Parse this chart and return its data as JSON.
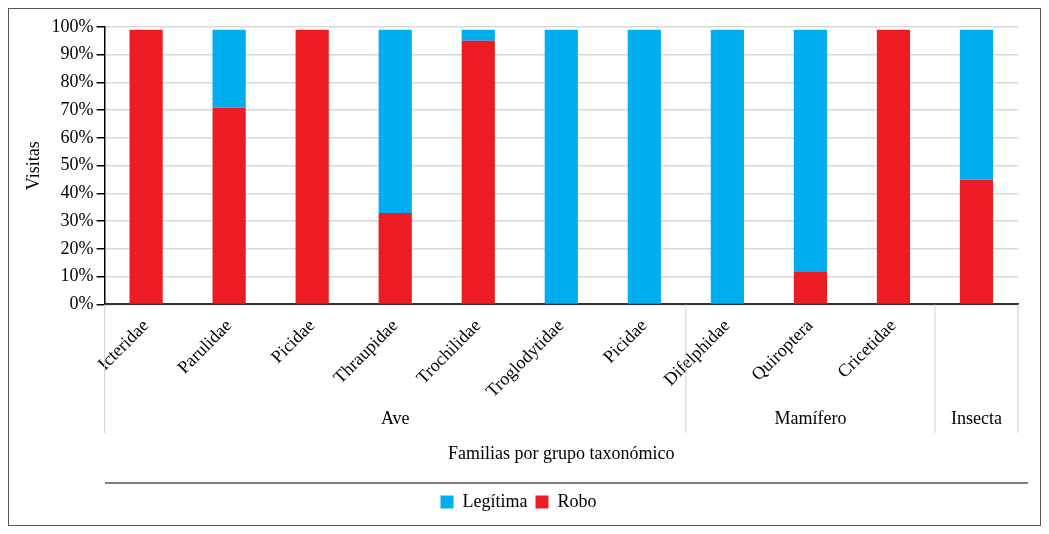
{
  "chart_data": {
    "type": "bar",
    "stacked": true,
    "xlabel": "Familias por grupo taxonómico",
    "ylabel": "Visitas",
    "categories": [
      "Icteridae",
      "Parulidae",
      "Picidae",
      "Thraupidae",
      "Trochilidae",
      "Troglodytidae",
      "Picidae",
      "Difelphidae",
      "Quiroptera",
      "Cricetidae",
      null
    ],
    "series": [
      {
        "name": "Robo",
        "color": "#ed1c24",
        "values": [
          99,
          71,
          99,
          33,
          95,
          0,
          0,
          0,
          12,
          99,
          45
        ]
      },
      {
        "name": "Legítima",
        "color": "#00aeef",
        "values": [
          0,
          28,
          0,
          66,
          4,
          99,
          99,
          99,
          87,
          0,
          54
        ]
      }
    ],
    "ylim": [
      0,
      100
    ],
    "yticks": [
      {
        "value": 0,
        "label": "0%"
      },
      {
        "value": 10,
        "label": "10%"
      },
      {
        "value": 20,
        "label": "20%"
      },
      {
        "value": 30,
        "label": "30%"
      },
      {
        "value": 40,
        "label": "40%"
      },
      {
        "value": 50,
        "label": "50%"
      },
      {
        "value": 60,
        "label": "60%"
      },
      {
        "value": 70,
        "label": "70%"
      },
      {
        "value": 80,
        "label": "80%"
      },
      {
        "value": 90,
        "label": "90%"
      },
      {
        "value": 100,
        "label": "100%"
      }
    ],
    "grid": "y",
    "legend": "bottom",
    "annotations": [
      "Ave",
      "Mamífero",
      "Insecta"
    ]
  }
}
